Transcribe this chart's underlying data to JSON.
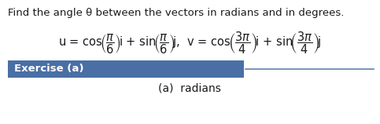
{
  "title_text": "Find the angle θ between the vectors in radians and in degrees.",
  "button_text": "Exercise (a)",
  "button_color": "#4a6fa5",
  "button_text_color": "#ffffff",
  "sub_text": "(a)  radians",
  "bg_color": "#ffffff",
  "text_color": "#1a1a1a",
  "line_color": "#6080b0",
  "title_fontsize": 9.5,
  "formula_fontsize": 10.5,
  "button_fontsize": 9.5,
  "sub_fontsize": 10,
  "fig_width": 4.83,
  "fig_height": 1.58,
  "dpi": 100
}
